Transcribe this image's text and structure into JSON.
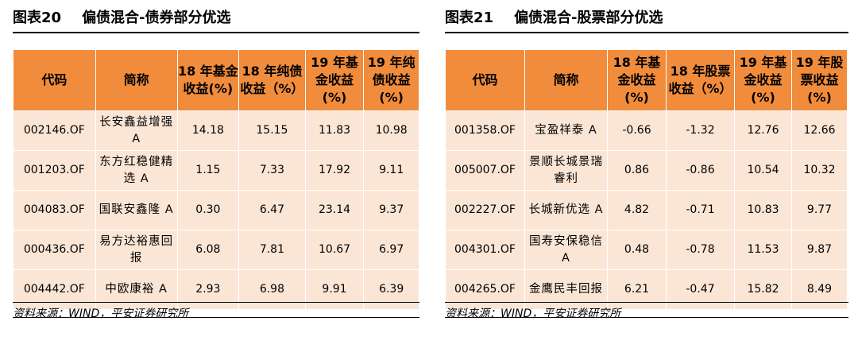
{
  "left": {
    "title_num": "图表20",
    "title_text": "偏债混合-债券部分优选",
    "headers": [
      "代码",
      "简称",
      "18 年基金收益(%)",
      "18 年纯债收益（%）",
      "19 年基金收益(%)",
      "19 年纯债收益(%)"
    ],
    "rows": [
      [
        "002146.OF",
        "长安鑫益增强 A",
        "14.18",
        "15.15",
        "11.83",
        "10.98"
      ],
      [
        "001203.OF",
        "东方红稳健精选 A",
        "1.15",
        "7.33",
        "17.92",
        "9.11"
      ],
      [
        "004083.OF",
        "国联安鑫隆 A",
        "0.30",
        "6.47",
        "23.14",
        "9.37"
      ],
      [
        "000436.OF",
        "易方达裕惠回报",
        "6.08",
        "7.81",
        "10.67",
        "6.97"
      ],
      [
        "004442.OF",
        "中欧康裕 A",
        "2.93",
        "6.98",
        "9.91",
        "6.39"
      ]
    ],
    "source": "资料来源：WIND，平安证券研究所"
  },
  "right": {
    "title_num": "图表21",
    "title_text": "偏债混合-股票部分优选",
    "headers": [
      "代码",
      "简称",
      "18 年基金收益(%)",
      "18 年股票收益（%）",
      "19 年基金收益(%)",
      "19 年股票收益(%)"
    ],
    "rows": [
      [
        "001358.OF",
        "宝盈祥泰 A",
        "-0.66",
        "-1.32",
        "12.76",
        "12.66"
      ],
      [
        "005007.OF",
        "景顺长城景瑞睿利",
        "0.86",
        "-0.86",
        "10.54",
        "10.32"
      ],
      [
        "002227.OF",
        "长城新优选 A",
        "4.82",
        "-0.71",
        "10.83",
        "9.77"
      ],
      [
        "004301.OF",
        "国寿安保稳信 A",
        "0.48",
        "-0.78",
        "11.53",
        "9.87"
      ],
      [
        "004265.OF",
        "金鹰民丰回报",
        "6.21",
        "-0.47",
        "15.82",
        "8.49"
      ]
    ],
    "source": "资料来源：WIND，平安证券研究所"
  }
}
